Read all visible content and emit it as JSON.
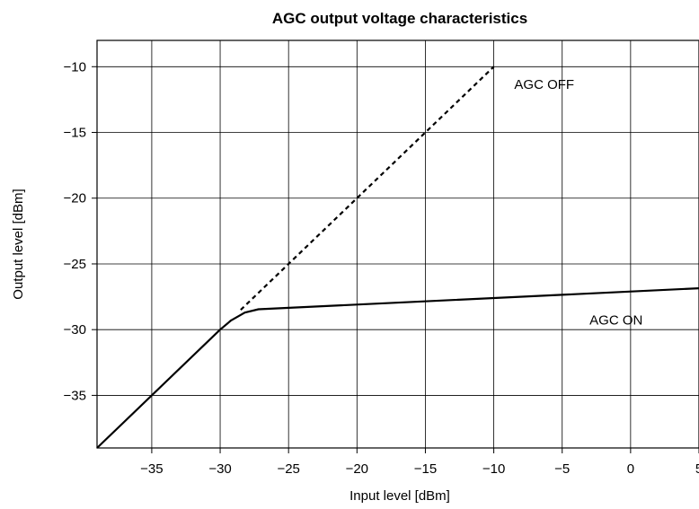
{
  "chart_data": {
    "type": "line",
    "title": "AGC output voltage  characteristics",
    "xlabel": "Input level [dBm]",
    "ylabel": "Output level [dBm]",
    "xlim": [
      -39,
      5
    ],
    "ylim": [
      -39,
      -8
    ],
    "x_ticks": [
      -35,
      -30,
      -25,
      -20,
      -15,
      -10,
      -5,
      0,
      5
    ],
    "y_ticks": [
      -35,
      -30,
      -25,
      -20,
      -15,
      -10
    ],
    "x_tick_labels": [
      "−35",
      "−30",
      "−25",
      "−20",
      "−15",
      "−10",
      "−5",
      "0",
      "5"
    ],
    "y_tick_labels": [
      "−35",
      "−30",
      "−25",
      "−20",
      "−15",
      "−10"
    ],
    "grid": true,
    "series": [
      {
        "name": "AGC ON",
        "style": "solid",
        "points": [
          [
            -39,
            -39
          ],
          [
            -30,
            -30
          ],
          [
            -29.2,
            -29.3
          ],
          [
            -28.2,
            -28.7
          ],
          [
            -27.2,
            -28.45
          ],
          [
            5,
            -26.85
          ]
        ]
      },
      {
        "name": "AGC OFF",
        "style": "dashed",
        "points": [
          [
            -28.5,
            -28.5
          ],
          [
            -10,
            -10
          ]
        ]
      }
    ],
    "annotations": [
      {
        "text": "AGC OFF",
        "x": -8.5,
        "y": -11.7
      },
      {
        "text": "AGC ON",
        "x": -3,
        "y": -29.6
      }
    ]
  }
}
